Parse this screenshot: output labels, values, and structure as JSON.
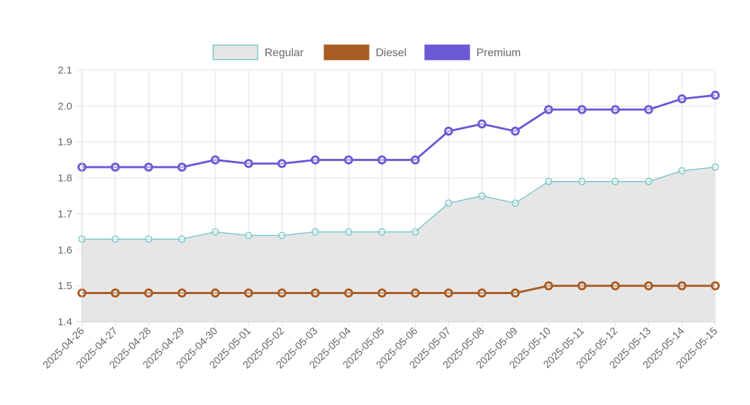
{
  "chart_data": {
    "type": "line",
    "x": [
      "2025-04-26",
      "2025-04-27",
      "2025-04-28",
      "2025-04-29",
      "2025-04-30",
      "2025-05-01",
      "2025-05-02",
      "2025-05-03",
      "2025-05-04",
      "2025-05-05",
      "2025-05-06",
      "2025-05-07",
      "2025-05-08",
      "2025-05-09",
      "2025-05-10",
      "2025-05-11",
      "2025-05-12",
      "2025-05-13",
      "2025-05-14",
      "2025-05-15"
    ],
    "ylim": [
      1.4,
      2.1
    ],
    "yticks": [
      "1.4",
      "1.5",
      "1.6",
      "1.7",
      "1.8",
      "1.9",
      "2.0",
      "2.1"
    ],
    "grid": true,
    "legend_position": "top",
    "series": [
      {
        "name": "Regular",
        "values": [
          1.63,
          1.63,
          1.63,
          1.63,
          1.65,
          1.64,
          1.64,
          1.65,
          1.65,
          1.65,
          1.65,
          1.73,
          1.75,
          1.73,
          1.79,
          1.79,
          1.79,
          1.79,
          1.82,
          1.83
        ],
        "line_color": "#7cc8c8",
        "fill_color": "#e5e5e5",
        "filled": true
      },
      {
        "name": "Diesel",
        "values": [
          1.48,
          1.48,
          1.48,
          1.48,
          1.48,
          1.48,
          1.48,
          1.48,
          1.48,
          1.48,
          1.48,
          1.48,
          1.48,
          1.48,
          1.5,
          1.5,
          1.5,
          1.5,
          1.5,
          1.5
        ],
        "line_color": "#a85c24",
        "fill_color": "#a85c24",
        "filled": false
      },
      {
        "name": "Premium",
        "values": [
          1.83,
          1.83,
          1.83,
          1.83,
          1.85,
          1.84,
          1.84,
          1.85,
          1.85,
          1.85,
          1.85,
          1.93,
          1.95,
          1.93,
          1.99,
          1.99,
          1.99,
          1.99,
          2.02,
          2.03
        ],
        "line_color": "#6a5ad6",
        "fill_color": "#6a5ad6",
        "filled": false
      }
    ]
  }
}
